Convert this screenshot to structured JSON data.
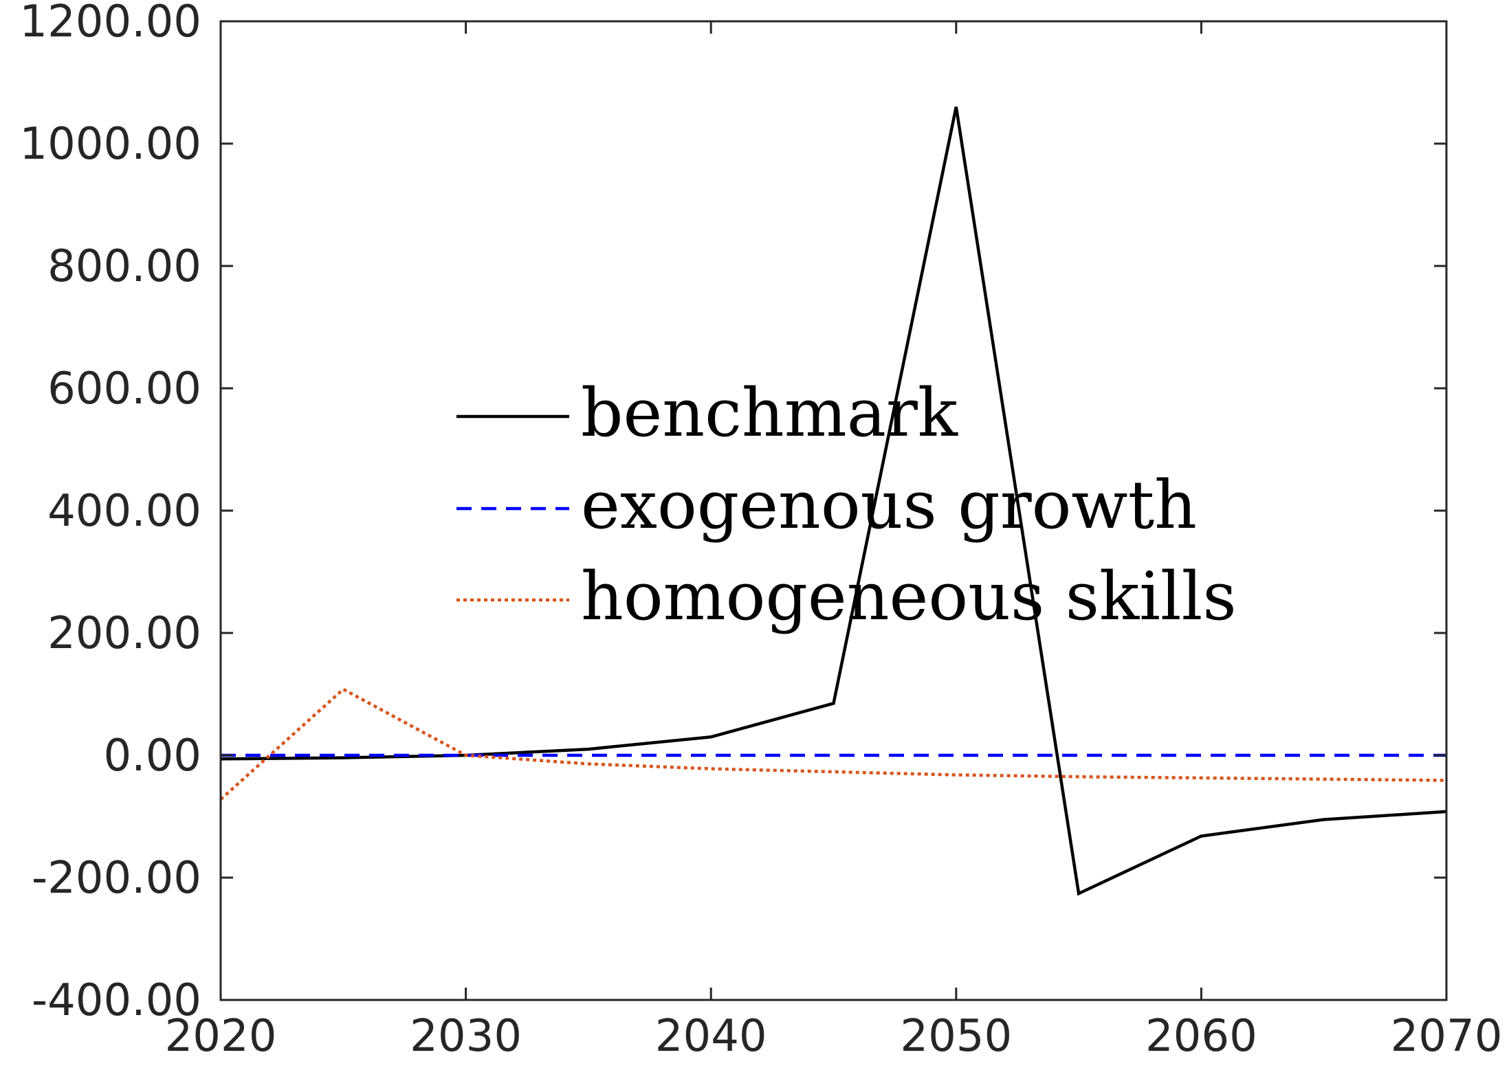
{
  "chart_data": {
    "type": "line",
    "title": "",
    "xlabel": "",
    "ylabel": "",
    "xlim": [
      2020,
      2070
    ],
    "ylim": [
      -400,
      1200
    ],
    "x_ticks": [
      2020,
      2030,
      2040,
      2050,
      2060,
      2070
    ],
    "x_tick_labels": [
      "2020",
      "2030",
      "2040",
      "2050",
      "2060",
      "2070"
    ],
    "y_ticks": [
      -400,
      -200,
      0,
      200,
      400,
      600,
      800,
      1000,
      1200
    ],
    "y_tick_labels": [
      "-400.00",
      "-200.00",
      "0.00",
      "200.00",
      "400.00",
      "600.00",
      "800.00",
      "1000.00",
      "1200.00"
    ],
    "grid": false,
    "legend_position": "center",
    "series": [
      {
        "name": "benchmark",
        "color": "#000000",
        "style": "solid",
        "x": [
          2020,
          2025,
          2030,
          2035,
          2040,
          2045,
          2050,
          2055,
          2060,
          2065,
          2070
        ],
        "y": [
          -6,
          -4,
          0,
          10,
          30,
          85,
          1060,
          -226,
          -132,
          -105,
          -92
        ]
      },
      {
        "name": "exogenous growth",
        "color": "#0000ff",
        "style": "dashed",
        "x": [
          2020,
          2025,
          2030,
          2035,
          2040,
          2045,
          2050,
          2055,
          2060,
          2065,
          2070
        ],
        "y": [
          0,
          0,
          0,
          0,
          0,
          0,
          0,
          0,
          0,
          0,
          0
        ]
      },
      {
        "name": "homogeneous skills",
        "color": "#d95319",
        "style": "dotted",
        "x": [
          2020,
          2025,
          2030,
          2035,
          2040,
          2045,
          2050,
          2055,
          2060,
          2065,
          2070
        ],
        "y": [
          -72,
          108,
          0,
          -14,
          -22,
          -27,
          -32,
          -35,
          -37,
          -39,
          -41
        ]
      }
    ]
  }
}
